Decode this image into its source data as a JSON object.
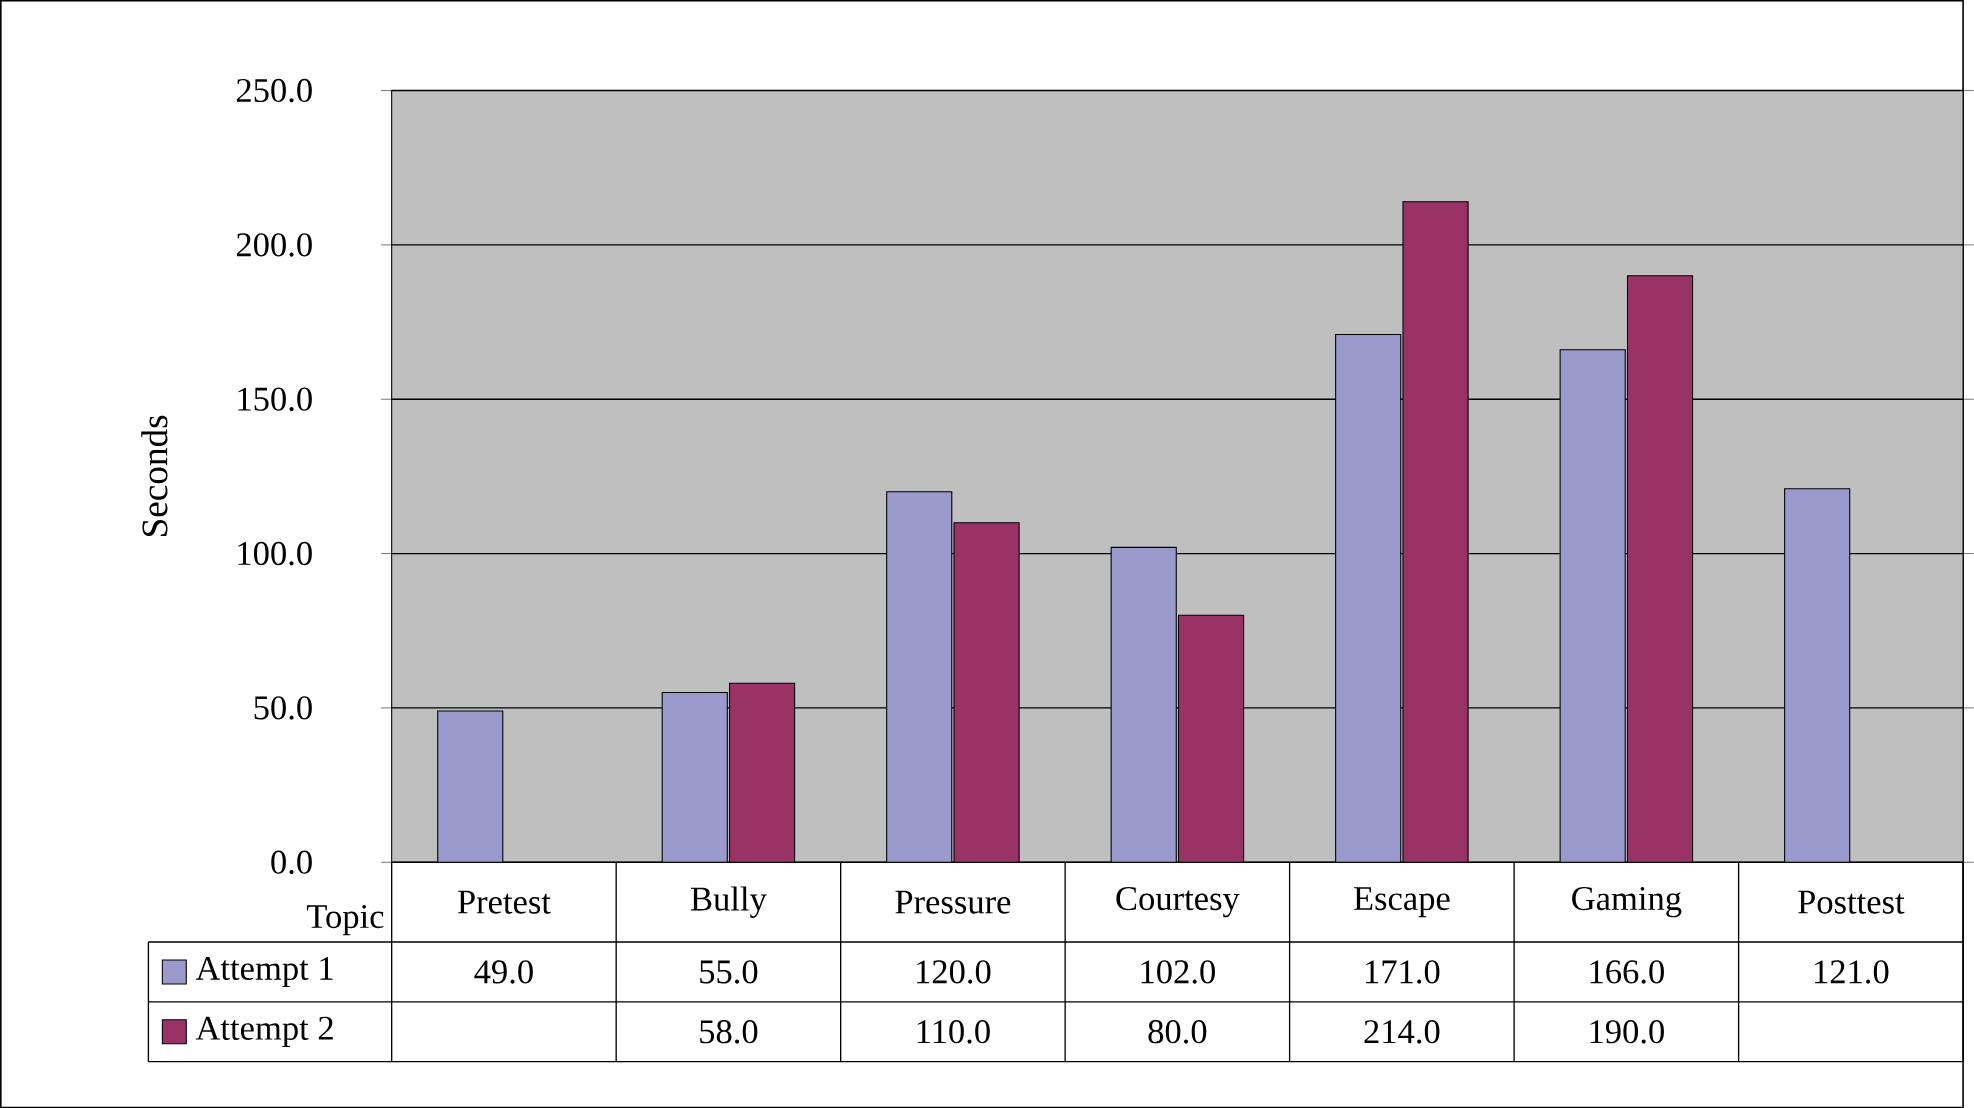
{
  "chart_data": {
    "type": "bar",
    "ylabel": "Seconds",
    "xlabel": "Topic",
    "categories": [
      "Pretest",
      "Bully",
      "Pressure",
      "Courtesy",
      "Escape",
      "Gaming",
      "Posttest"
    ],
    "series": [
      {
        "name": "Attempt 1",
        "color": "#9999cc",
        "values": [
          49,
          55,
          120,
          102,
          171,
          166,
          121
        ],
        "value_labels": [
          "49.0",
          "55.0",
          "120.0",
          "102.0",
          "171.0",
          "166.0",
          "121.0"
        ]
      },
      {
        "name": "Attempt 2",
        "color": "#993366",
        "values": [
          null,
          58,
          110,
          80,
          214,
          190,
          null
        ],
        "value_labels": [
          null,
          "58.0",
          "110.0",
          "80.0",
          "214.0",
          "190.0",
          null
        ]
      }
    ],
    "ylim": [
      0,
      250
    ],
    "yticks": [
      {
        "value": 0,
        "label": "0.0"
      },
      {
        "value": 50,
        "label": "50.0"
      },
      {
        "value": 100,
        "label": "100.0"
      },
      {
        "value": 150,
        "label": "150.0"
      },
      {
        "value": 200,
        "label": "200.0"
      },
      {
        "value": 250,
        "label": "250.0"
      }
    ],
    "grid": "y",
    "legend": "bottom"
  }
}
